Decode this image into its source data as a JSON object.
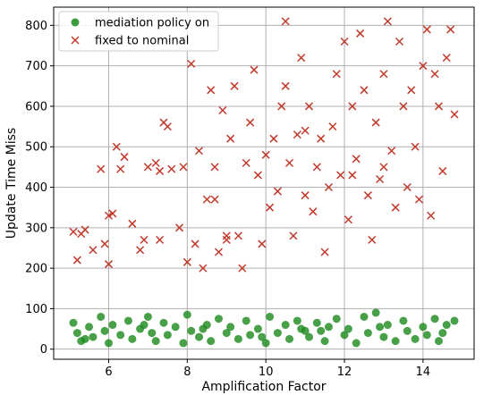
{
  "chart_data": {
    "type": "scatter",
    "xlabel": "Amplification Factor",
    "ylabel": "Update Time Miss",
    "xlim": [
      4.6,
      15.3
    ],
    "ylim": [
      -25,
      845
    ],
    "xticks": [
      6,
      8,
      10,
      12,
      14
    ],
    "yticks": [
      0,
      100,
      200,
      300,
      400,
      500,
      600,
      700,
      800
    ],
    "grid": true,
    "legend": "top-left",
    "series": [
      {
        "name": "mediation policy on",
        "marker": "circle",
        "color": "#1a8a1a",
        "points": [
          [
            5.1,
            65
          ],
          [
            5.2,
            40
          ],
          [
            5.3,
            20
          ],
          [
            5.5,
            55
          ],
          [
            5.6,
            30
          ],
          [
            5.8,
            80
          ],
          [
            5.9,
            45
          ],
          [
            6.0,
            15
          ],
          [
            6.1,
            60
          ],
          [
            6.3,
            35
          ],
          [
            6.5,
            70
          ],
          [
            6.6,
            25
          ],
          [
            6.8,
            50
          ],
          [
            7.0,
            80
          ],
          [
            7.1,
            40
          ],
          [
            7.2,
            20
          ],
          [
            7.4,
            65
          ],
          [
            7.5,
            35
          ],
          [
            7.7,
            55
          ],
          [
            7.9,
            15
          ],
          [
            8.0,
            85
          ],
          [
            8.1,
            45
          ],
          [
            8.3,
            30
          ],
          [
            8.5,
            60
          ],
          [
            8.6,
            20
          ],
          [
            8.8,
            75
          ],
          [
            9.0,
            40
          ],
          [
            9.1,
            55
          ],
          [
            9.3,
            25
          ],
          [
            9.5,
            70
          ],
          [
            9.6,
            35
          ],
          [
            9.8,
            50
          ],
          [
            10.0,
            15
          ],
          [
            10.1,
            80
          ],
          [
            10.3,
            40
          ],
          [
            10.5,
            60
          ],
          [
            10.6,
            25
          ],
          [
            10.8,
            70
          ],
          [
            11.0,
            45
          ],
          [
            11.1,
            30
          ],
          [
            11.3,
            65
          ],
          [
            11.5,
            20
          ],
          [
            11.6,
            55
          ],
          [
            11.8,
            75
          ],
          [
            12.0,
            35
          ],
          [
            12.1,
            50
          ],
          [
            12.3,
            15
          ],
          [
            12.5,
            80
          ],
          [
            12.6,
            40
          ],
          [
            12.8,
            90
          ],
          [
            13.0,
            30
          ],
          [
            13.1,
            60
          ],
          [
            13.3,
            20
          ],
          [
            13.5,
            70
          ],
          [
            13.6,
            45
          ],
          [
            13.8,
            25
          ],
          [
            14.0,
            55
          ],
          [
            14.1,
            35
          ],
          [
            14.3,
            75
          ],
          [
            14.5,
            40
          ],
          [
            14.6,
            60
          ],
          [
            14.8,
            70
          ],
          [
            5.4,
            25
          ],
          [
            6.9,
            60
          ],
          [
            8.4,
            50
          ],
          [
            9.9,
            30
          ],
          [
            11.4,
            45
          ],
          [
            12.9,
            55
          ],
          [
            14.4,
            20
          ],
          [
            10.9,
            50
          ]
        ]
      },
      {
        "name": "fixed to nominal",
        "marker": "x",
        "color": "#c0392b",
        "points": [
          [
            5.1,
            290
          ],
          [
            5.2,
            220
          ],
          [
            5.3,
            285
          ],
          [
            5.4,
            295
          ],
          [
            5.6,
            245
          ],
          [
            5.8,
            445
          ],
          [
            5.9,
            260
          ],
          [
            6.0,
            210
          ],
          [
            6.1,
            335
          ],
          [
            6.2,
            500
          ],
          [
            6.3,
            445
          ],
          [
            6.4,
            475
          ],
          [
            6.6,
            310
          ],
          [
            6.8,
            245
          ],
          [
            6.9,
            270
          ],
          [
            7.0,
            450
          ],
          [
            7.2,
            460
          ],
          [
            7.3,
            440
          ],
          [
            7.4,
            560
          ],
          [
            7.5,
            550
          ],
          [
            7.6,
            445
          ],
          [
            7.8,
            300
          ],
          [
            7.9,
            450
          ],
          [
            8.0,
            215
          ],
          [
            8.1,
            705
          ],
          [
            8.2,
            260
          ],
          [
            8.3,
            490
          ],
          [
            8.4,
            200
          ],
          [
            8.5,
            370
          ],
          [
            8.6,
            640
          ],
          [
            8.7,
            450
          ],
          [
            8.8,
            240
          ],
          [
            8.9,
            590
          ],
          [
            9.0,
            270
          ],
          [
            9.1,
            520
          ],
          [
            9.2,
            650
          ],
          [
            9.3,
            280
          ],
          [
            9.4,
            200
          ],
          [
            9.5,
            460
          ],
          [
            9.6,
            560
          ],
          [
            9.7,
            690
          ],
          [
            9.8,
            430
          ],
          [
            9.9,
            260
          ],
          [
            10.0,
            480
          ],
          [
            10.1,
            350
          ],
          [
            10.2,
            520
          ],
          [
            10.3,
            390
          ],
          [
            10.4,
            600
          ],
          [
            10.5,
            650
          ],
          [
            10.6,
            460
          ],
          [
            10.7,
            280
          ],
          [
            10.8,
            530
          ],
          [
            10.9,
            720
          ],
          [
            11.0,
            380
          ],
          [
            11.1,
            600
          ],
          [
            11.2,
            340
          ],
          [
            11.3,
            450
          ],
          [
            11.4,
            520
          ],
          [
            11.5,
            240
          ],
          [
            11.6,
            400
          ],
          [
            11.7,
            550
          ],
          [
            11.8,
            680
          ],
          [
            11.9,
            430
          ],
          [
            12.0,
            760
          ],
          [
            12.1,
            320
          ],
          [
            12.2,
            600
          ],
          [
            12.3,
            470
          ],
          [
            12.4,
            780
          ],
          [
            12.5,
            640
          ],
          [
            12.6,
            380
          ],
          [
            12.7,
            270
          ],
          [
            12.8,
            560
          ],
          [
            12.9,
            420
          ],
          [
            13.0,
            680
          ],
          [
            13.1,
            810
          ],
          [
            13.2,
            490
          ],
          [
            13.3,
            350
          ],
          [
            13.4,
            760
          ],
          [
            13.5,
            600
          ],
          [
            13.6,
            400
          ],
          [
            13.7,
            640
          ],
          [
            13.8,
            500
          ],
          [
            13.9,
            370
          ],
          [
            14.0,
            700
          ],
          [
            14.1,
            790
          ],
          [
            14.2,
            330
          ],
          [
            14.3,
            680
          ],
          [
            14.4,
            600
          ],
          [
            14.5,
            440
          ],
          [
            14.6,
            720
          ],
          [
            14.7,
            790
          ],
          [
            14.8,
            580
          ],
          [
            10.5,
            810
          ],
          [
            9.0,
            280
          ],
          [
            11.0,
            540
          ],
          [
            12.2,
            430
          ],
          [
            7.3,
            270
          ],
          [
            8.7,
            370
          ],
          [
            13.0,
            450
          ],
          [
            6.0,
            330
          ]
        ]
      }
    ]
  }
}
